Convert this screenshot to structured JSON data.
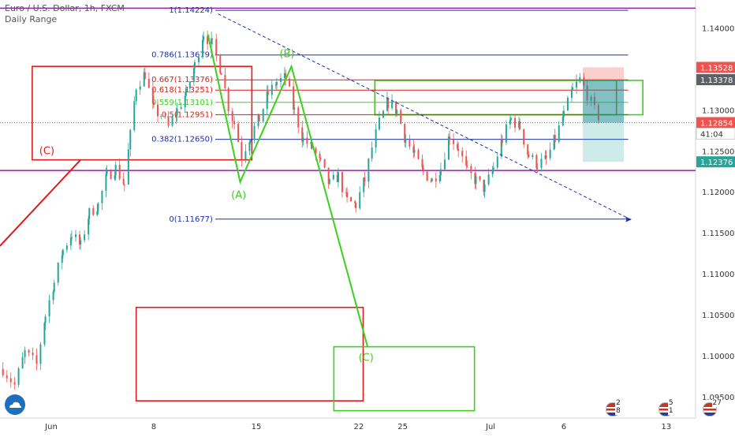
{
  "header": {
    "title": "Euro / U.S. Dollar, 1h, FXCM",
    "indicator": "Daily Range"
  },
  "colors": {
    "purple": "#8e24aa",
    "red": "#e01b1b",
    "green": "#3cd01e",
    "olive": "#8a7a00",
    "blue": "#1b2fb0",
    "price_red": "#ef5350",
    "price_dark": "#5d6066",
    "price_teal": "#26a69a",
    "candle_up": "#26a69a",
    "candle_down": "#ef5350"
  },
  "chart_data": {
    "type": "candlestick",
    "symbol": "Euro / U.S. Dollar",
    "timeframe": "1h",
    "source": "FXCM",
    "x_ticks": [
      {
        "label": "Jun",
        "day": 1
      },
      {
        "label": "8",
        "day": 8
      },
      {
        "label": "15",
        "day": 15
      },
      {
        "label": "22",
        "day": 22
      },
      {
        "label": "25",
        "day": 25
      },
      {
        "label": "Jul",
        "day": 31
      },
      {
        "label": "6",
        "day": 36
      },
      {
        "label": "13",
        "day": 43
      }
    ],
    "x_range_days": [
      -2.5,
      45
    ],
    "y_range": [
      1.0925,
      1.1435
    ],
    "y_ticks": [
      1.14,
      1.135,
      1.13,
      1.125,
      1.12,
      1.115,
      1.11,
      1.105,
      1.1,
      1.095
    ],
    "y_tick_labels": [
      "1.14000",
      "1.13500",
      "1.13000",
      "1.12500",
      "1.12000",
      "1.11500",
      "1.11000",
      "1.10500",
      "1.10000",
      "1.09500"
    ],
    "price_tags": [
      {
        "label": "1.13528",
        "value": 1.13528,
        "color": "#ef5350"
      },
      {
        "label": "1.13378",
        "value": 1.13378,
        "color": "#5d6066"
      },
      {
        "label": "1.12854",
        "value": 1.12854,
        "color": "#ef5350"
      },
      {
        "label": "41:04",
        "value": 1.1272,
        "color": "#ffffff"
      },
      {
        "label": "1.12376",
        "value": 1.12376,
        "color": "#26a69a"
      }
    ],
    "current_price": 1.12854,
    "horizontal_lines": [
      {
        "value": 1.1425,
        "color": "#8e24aa"
      },
      {
        "value": 1.1227,
        "color": "#8e24aa"
      }
    ],
    "fib_levels": [
      {
        "label": "1(1.14224)",
        "value": 1.14224,
        "color": "#1b2fb0"
      },
      {
        "label": "0.786(1.13679)",
        "value": 1.13679,
        "color": "#1b2fb0"
      },
      {
        "label": "0.667(1.13376)",
        "value": 1.13376,
        "color": "#e01b1b"
      },
      {
        "label": "0.618(1.13251)",
        "value": 1.13251,
        "color": "#e01b1b"
      },
      {
        "label": "0.559(1.13101)",
        "value": 1.13101,
        "color": "#3cd01e"
      },
      {
        "label": "0.5(1.12951)",
        "value": 1.12951,
        "color": "#e01b1b"
      },
      {
        "label": "0.382(1.12650)",
        "value": 1.1265,
        "color": "#1b2fb0"
      },
      {
        "label": "0(1.11677)",
        "value": 1.11677,
        "color": "#1b2fb0"
      }
    ],
    "fib_range_days": [
      12.2,
      40.4
    ],
    "trendline": {
      "from": {
        "day": 12.4,
        "price": 1.1418
      },
      "to": {
        "day": 40.6,
        "price": 1.1167
      },
      "style": "dashed",
      "color": "#1b2fb0"
    },
    "waves": [
      {
        "name": "green",
        "color": "#3cd01e",
        "points": [
          {
            "day": 11.7,
            "price": 1.1393
          },
          {
            "day": 13.9,
            "price": 1.1213
          },
          {
            "day": 17.4,
            "price": 1.1354
          },
          {
            "day": 22.6,
            "price": 1.1012
          }
        ],
        "labels": [
          {
            "text": "(A)",
            "day": 13.8,
            "price": 1.1193
          },
          {
            "text": "(B)",
            "day": 17.1,
            "price": 1.1365
          },
          {
            "text": "(C)",
            "day": 22.5,
            "price": 1.0995
          }
        ]
      },
      {
        "name": "red",
        "color": "#e01b1b",
        "points": [
          {
            "day": -2.5,
            "price": 1.1135
          },
          {
            "day": 3.0,
            "price": 1.124
          }
        ],
        "labels": [
          {
            "text": "(C)",
            "day": 0.7,
            "price": 1.1247
          }
        ]
      }
    ],
    "zones": [
      {
        "color": "#e01b1b",
        "day": [
          -0.3,
          14.7
        ],
        "price": [
          1.124,
          1.1354
        ]
      },
      {
        "color": "#e01b1b",
        "day": [
          6.8,
          22.3
        ],
        "price": [
          1.0946,
          1.106
        ]
      },
      {
        "color": "#3cd01e",
        "day": [
          20.3,
          29.9
        ],
        "price": [
          1.0934,
          1.1012
        ]
      },
      {
        "color": "#8a7a00",
        "day": [
          23.1,
          39.6
        ],
        "price": [
          1.1295,
          1.1337
        ]
      },
      {
        "color": "#3cd01e",
        "day": [
          23.1,
          41.4
        ],
        "price": [
          1.1295,
          1.1337
        ]
      }
    ],
    "position": {
      "entry": 1.13378,
      "target": 1.12376,
      "stop": 1.13528,
      "day": [
        37.3,
        40.1
      ]
    },
    "series": [
      {
        "day": -2.3,
        "price": 1.0985
      },
      {
        "day": -1.5,
        "price": 1.0965
      },
      {
        "day": -0.8,
        "price": 1.1005
      },
      {
        "day": 0.0,
        "price": 1.099
      },
      {
        "day": 0.6,
        "price": 1.105
      },
      {
        "day": 1.2,
        "price": 1.109
      },
      {
        "day": 1.8,
        "price": 1.113
      },
      {
        "day": 2.4,
        "price": 1.115
      },
      {
        "day": 3.0,
        "price": 1.1135
      },
      {
        "day": 3.6,
        "price": 1.1175
      },
      {
        "day": 4.2,
        "price": 1.1185
      },
      {
        "day": 4.8,
        "price": 1.122
      },
      {
        "day": 5.4,
        "price": 1.123
      },
      {
        "day": 6.0,
        "price": 1.121
      },
      {
        "day": 6.4,
        "price": 1.127
      },
      {
        "day": 6.8,
        "price": 1.133
      },
      {
        "day": 7.4,
        "price": 1.1345
      },
      {
        "day": 8.0,
        "price": 1.13
      },
      {
        "day": 8.5,
        "price": 1.1295
      },
      {
        "day": 9.0,
        "price": 1.128
      },
      {
        "day": 9.6,
        "price": 1.13
      },
      {
        "day": 10.2,
        "price": 1.132
      },
      {
        "day": 10.8,
        "price": 1.1355
      },
      {
        "day": 11.4,
        "price": 1.1395
      },
      {
        "day": 12.0,
        "price": 1.138
      },
      {
        "day": 12.6,
        "price": 1.135
      },
      {
        "day": 13.1,
        "price": 1.1305
      },
      {
        "day": 13.5,
        "price": 1.1285
      },
      {
        "day": 14.0,
        "price": 1.1245
      },
      {
        "day": 14.6,
        "price": 1.127
      },
      {
        "day": 15.2,
        "price": 1.129
      },
      {
        "day": 15.8,
        "price": 1.132
      },
      {
        "day": 16.4,
        "price": 1.1335
      },
      {
        "day": 17.0,
        "price": 1.134
      },
      {
        "day": 17.6,
        "price": 1.13
      },
      {
        "day": 18.2,
        "price": 1.1265
      },
      {
        "day": 18.8,
        "price": 1.1255
      },
      {
        "day": 19.4,
        "price": 1.1235
      },
      {
        "day": 20.0,
        "price": 1.121
      },
      {
        "day": 20.6,
        "price": 1.122
      },
      {
        "day": 21.2,
        "price": 1.119
      },
      {
        "day": 21.8,
        "price": 1.1185
      },
      {
        "day": 22.4,
        "price": 1.1215
      },
      {
        "day": 22.9,
        "price": 1.1255
      },
      {
        "day": 23.4,
        "price": 1.1285
      },
      {
        "day": 24.0,
        "price": 1.131
      },
      {
        "day": 24.6,
        "price": 1.13
      },
      {
        "day": 25.2,
        "price": 1.1265
      },
      {
        "day": 25.8,
        "price": 1.1245
      },
      {
        "day": 26.4,
        "price": 1.1225
      },
      {
        "day": 27.0,
        "price": 1.1215
      },
      {
        "day": 27.6,
        "price": 1.123
      },
      {
        "day": 28.2,
        "price": 1.127
      },
      {
        "day": 28.8,
        "price": 1.1255
      },
      {
        "day": 29.4,
        "price": 1.1225
      },
      {
        "day": 30.0,
        "price": 1.1215
      },
      {
        "day": 30.6,
        "price": 1.1205
      },
      {
        "day": 31.2,
        "price": 1.123
      },
      {
        "day": 31.8,
        "price": 1.1265
      },
      {
        "day": 32.4,
        "price": 1.129
      },
      {
        "day": 33.0,
        "price": 1.128
      },
      {
        "day": 33.6,
        "price": 1.1245
      },
      {
        "day": 34.2,
        "price": 1.1235
      },
      {
        "day": 34.8,
        "price": 1.124
      },
      {
        "day": 35.4,
        "price": 1.1265
      },
      {
        "day": 36.0,
        "price": 1.1295
      },
      {
        "day": 36.6,
        "price": 1.1325
      },
      {
        "day": 37.1,
        "price": 1.1338
      },
      {
        "day": 37.6,
        "price": 1.132
      },
      {
        "day": 38.1,
        "price": 1.13
      },
      {
        "day": 38.6,
        "price": 1.1287
      }
    ]
  },
  "events": [
    {
      "count": "2 8",
      "day": 38.0
    },
    {
      "count": "5 1",
      "day": 41.6
    },
    {
      "count": "27",
      "day": 44.6
    },
    {
      "count": "6 2",
      "day": 47.6
    }
  ]
}
